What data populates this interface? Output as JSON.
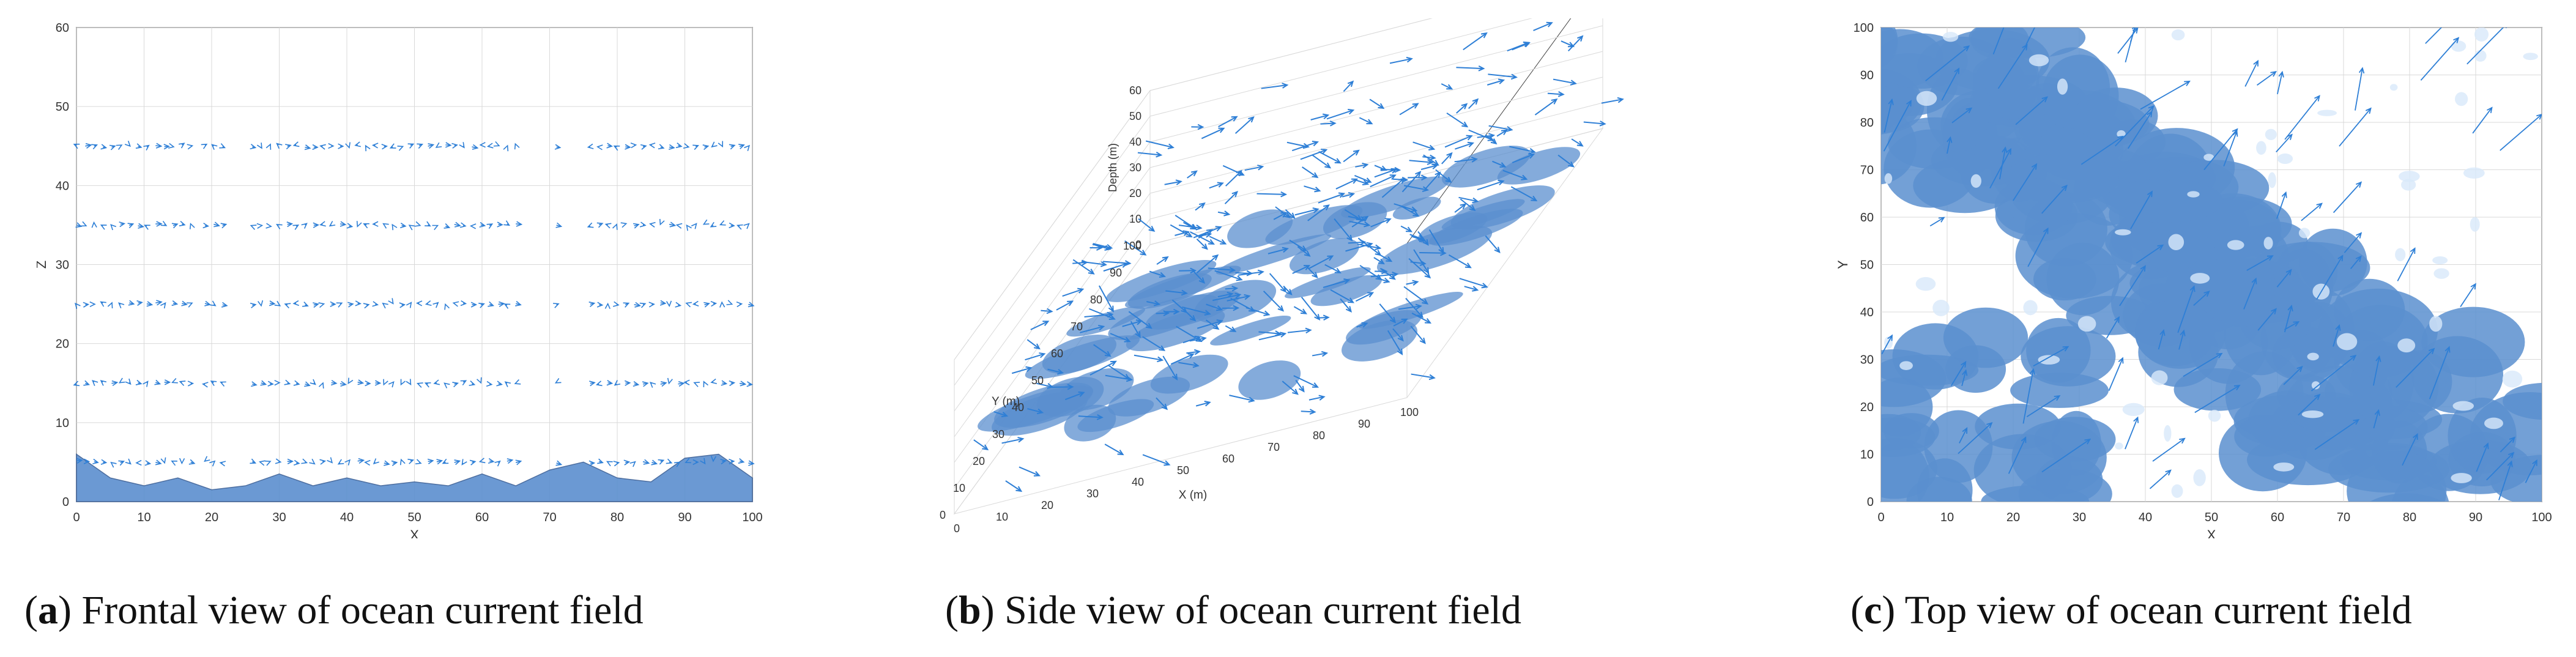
{
  "captions": [
    {
      "letter": "a",
      "text": ") Frontal view of ocean current field",
      "open": "("
    },
    {
      "letter": "b",
      "text": ") Side view of ocean current field",
      "open": "("
    },
    {
      "letter": "c",
      "text": ") Top view of ocean current field",
      "open": "("
    }
  ],
  "colors": {
    "arrow": "#2e7fd6",
    "surface": "#5b8fcf",
    "surface_dark": "#3a5f96",
    "grid": "#d9d9d9",
    "axis": "#444444"
  },
  "chart_data": [
    {
      "type": "quiver",
      "view": "frontal",
      "xlabel": "X",
      "ylabel": "Z",
      "xlim": [
        0,
        100
      ],
      "ylim": [
        0,
        60
      ],
      "xticks": [
        "0",
        "10",
        "20",
        "30",
        "40",
        "50",
        "60",
        "70",
        "80",
        "90",
        "100"
      ],
      "yticks": [
        "0",
        "10",
        "20",
        "30",
        "40",
        "50",
        "60"
      ],
      "arrow_layers_z": [
        5,
        15,
        25,
        35,
        45
      ],
      "arrow_segments_x": [
        [
          0,
          18
        ],
        [
          19,
          22
        ],
        [
          26,
          66
        ],
        [
          71,
          72
        ],
        [
          76,
          100
        ]
      ],
      "terrain_profile": {
        "x": [
          0,
          5,
          10,
          15,
          20,
          25,
          30,
          35,
          40,
          45,
          50,
          55,
          60,
          65,
          70,
          75,
          80,
          85,
          90,
          95,
          100
        ],
        "z": [
          6,
          3,
          2,
          3,
          1.5,
          2,
          3.5,
          2,
          3,
          2,
          2.5,
          2,
          3.5,
          2,
          4,
          5,
          3,
          2.5,
          5.5,
          6,
          3
        ]
      }
    },
    {
      "type": "quiver3d",
      "view": "side",
      "xlabel": "X (m)",
      "ylabel": "Y (m)",
      "zlabel": "Depth (m)",
      "xticks": [
        "0",
        "10",
        "20",
        "30",
        "40",
        "50",
        "60",
        "70",
        "80",
        "90",
        "100"
      ],
      "yticks": [
        "0",
        "10",
        "20",
        "30",
        "40",
        "50",
        "60",
        "70",
        "80",
        "90",
        "100"
      ],
      "zticks": [
        "0",
        "10",
        "20",
        "30",
        "40",
        "50",
        "60"
      ]
    },
    {
      "type": "quiver",
      "view": "top",
      "xlabel": "X",
      "ylabel": "Y",
      "xlim": [
        0,
        100
      ],
      "ylim": [
        0,
        100
      ],
      "xticks": [
        "0",
        "10",
        "20",
        "30",
        "40",
        "50",
        "60",
        "70",
        "80",
        "90",
        "100"
      ],
      "yticks": [
        "0",
        "10",
        "20",
        "30",
        "40",
        "50",
        "60",
        "70",
        "80",
        "90",
        "100"
      ]
    }
  ]
}
